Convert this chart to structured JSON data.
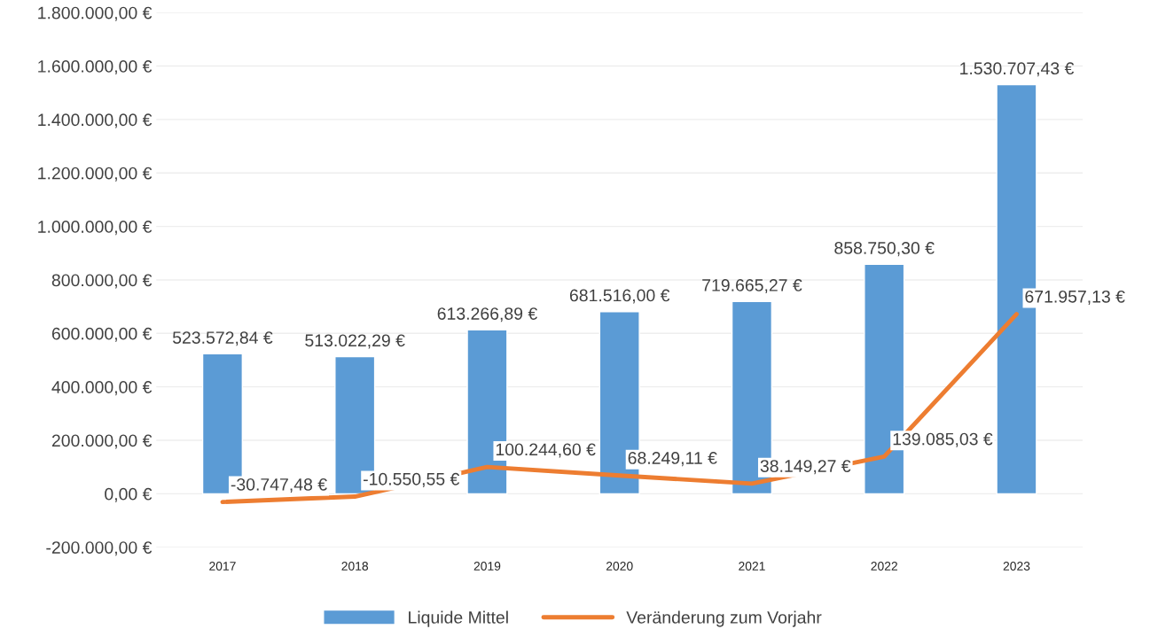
{
  "chart_data": {
    "type": "bar",
    "categories": [
      "2017",
      "2018",
      "2019",
      "2020",
      "2021",
      "2022",
      "2023"
    ],
    "series": [
      {
        "name": "Liquide Mittel",
        "color": "#5b9bd5",
        "values": [
          523572.84,
          513022.29,
          613266.89,
          681516.0,
          719665.27,
          858750.3,
          1530707.43
        ],
        "value_labels": [
          "523.572,84 €",
          "513.022,29 €",
          "613.266,89 €",
          "681.516,00 €",
          "719.665,27 €",
          "858.750,30 €",
          "1.530.707,43 €"
        ]
      },
      {
        "name": "Veränderung zum Vorjahr",
        "type": "line",
        "color": "#ed7d31",
        "values": [
          -30747.48,
          -10550.55,
          100244.6,
          68249.11,
          38149.27,
          139085.03,
          671957.13
        ],
        "value_labels": [
          "-30.747,48 €",
          "-10.550,55 €",
          "100.244,60 €",
          "68.249,11 €",
          "38.149,27 €",
          "139.085,03 €",
          "671.957,13 €"
        ]
      }
    ],
    "ylim": [
      -200000,
      1800000
    ],
    "yticks": [
      {
        "value": -200000,
        "label": "-200.000,00 €"
      },
      {
        "value": 0,
        "label": "0,00 €"
      },
      {
        "value": 200000,
        "label": "200.000,00 €"
      },
      {
        "value": 400000,
        "label": "400.000,00 €"
      },
      {
        "value": 600000,
        "label": "600.000,00 €"
      },
      {
        "value": 800000,
        "label": "800.000,00 €"
      },
      {
        "value": 1000000,
        "label": "1.000.000,00 €"
      },
      {
        "value": 1200000,
        "label": "1.200.000,00 €"
      },
      {
        "value": 1400000,
        "label": "1.400.000,00 €"
      },
      {
        "value": 1600000,
        "label": "1.600.000,00 €"
      },
      {
        "value": 1800000,
        "label": "1.800.000,00 €"
      }
    ],
    "grid": "y",
    "legend": "bottom",
    "marker": "none",
    "line_style": "solid"
  }
}
